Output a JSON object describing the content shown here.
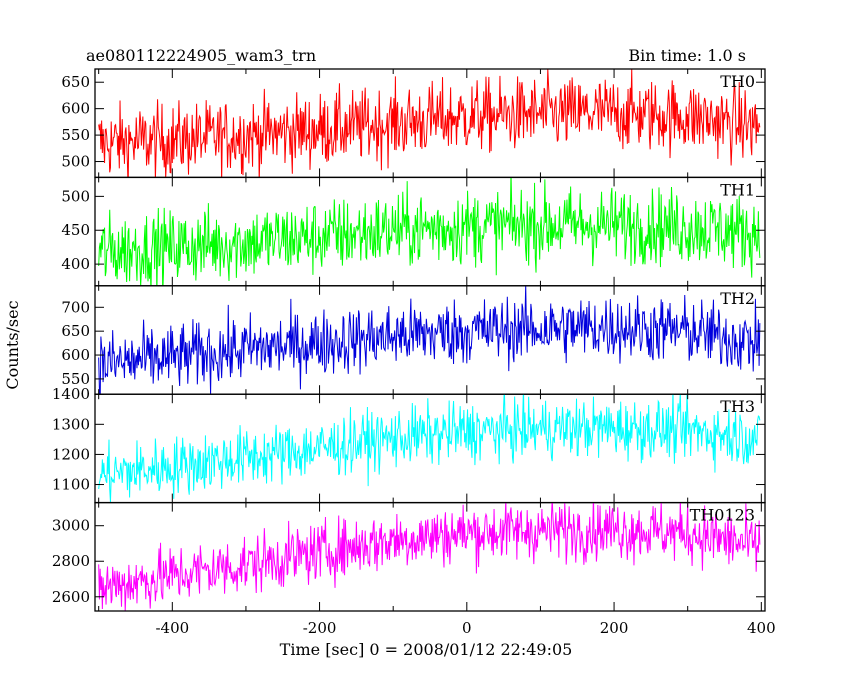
{
  "chart_data": {
    "type": "line",
    "title_left": "ae080112224905_wam3_trn",
    "title_right": "Bin time: 1.0 s",
    "xlabel": "Time [sec] 0 = 2008/01/12 22:49:05",
    "ylabel": "Counts/sec",
    "xlim": [
      -505,
      405
    ],
    "xticks": [
      -400,
      -200,
      0,
      200,
      400
    ],
    "panels": [
      {
        "name": "TH0",
        "color": "#ff0000",
        "ylim": [
          470,
          675
        ],
        "yticks": [
          500,
          550,
          600,
          650
        ],
        "x": [
          -500,
          -400,
          -300,
          -200,
          -100,
          0,
          100,
          200,
          300,
          400
        ],
        "y": [
          535,
          540,
          550,
          560,
          572,
          585,
          590,
          592,
          585,
          565
        ],
        "noise_amplitude": 35
      },
      {
        "name": "TH1",
        "color": "#00ff00",
        "ylim": [
          368,
          528
        ],
        "yticks": [
          400,
          450,
          500
        ],
        "x": [
          -500,
          -400,
          -300,
          -200,
          -100,
          0,
          100,
          200,
          300,
          400
        ],
        "y": [
          418,
          425,
          432,
          440,
          450,
          455,
          458,
          458,
          455,
          445
        ],
        "noise_amplitude": 28
      },
      {
        "name": "TH2",
        "color": "#0000dd",
        "ylim": [
          518,
          745
        ],
        "yticks": [
          550,
          600,
          650,
          700
        ],
        "x": [
          -500,
          -400,
          -300,
          -200,
          -100,
          0,
          100,
          200,
          300,
          400
        ],
        "y": [
          580,
          595,
          612,
          625,
          640,
          650,
          655,
          658,
          650,
          625
        ],
        "noise_amplitude": 35
      },
      {
        "name": "TH3",
        "color": "#00ffff",
        "ylim": [
          1040,
          1400
        ],
        "yticks": [
          1100,
          1200,
          1300,
          1400
        ],
        "x": [
          -500,
          -400,
          -300,
          -200,
          -100,
          0,
          100,
          200,
          300,
          400
        ],
        "y": [
          1130,
          1160,
          1190,
          1220,
          1255,
          1275,
          1285,
          1288,
          1280,
          1255
        ],
        "noise_amplitude": 50
      },
      {
        "name": "TH0123",
        "color": "#ff00ff",
        "ylim": [
          2520,
          3130
        ],
        "yticks": [
          2600,
          2800,
          3000
        ],
        "x": [
          -500,
          -400,
          -300,
          -200,
          -100,
          0,
          100,
          200,
          300,
          400
        ],
        "y": [
          2650,
          2720,
          2780,
          2850,
          2920,
          2960,
          2975,
          2980,
          2960,
          2880
        ],
        "noise_amplitude": 85
      }
    ]
  }
}
